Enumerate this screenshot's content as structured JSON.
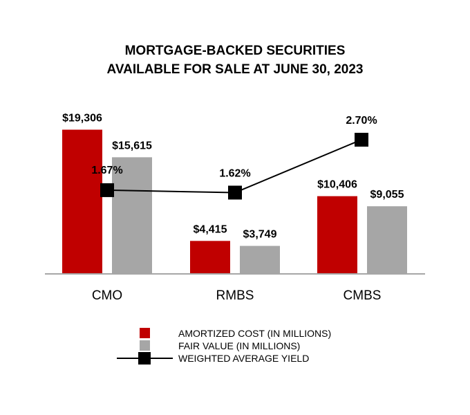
{
  "chart_data": {
    "type": "bar",
    "title": "MORTGAGE-BACKED SECURITIES",
    "subtitle": "AVAILABLE FOR SALE AT JUNE 30, 2023",
    "categories": [
      "CMO",
      "RMBS",
      "CMBS"
    ],
    "series": [
      {
        "name": "AMORTIZED COST (IN MILLIONS)",
        "type": "bar",
        "color": "#c00000",
        "values": [
          19306,
          4415,
          10406
        ],
        "labels": [
          "$19,306",
          "$4,415",
          "$10,406"
        ]
      },
      {
        "name": "FAIR VALUE (IN MILLIONS)",
        "type": "bar",
        "color": "#a6a6a6",
        "values": [
          15615,
          3749,
          9055
        ],
        "labels": [
          "$15,615",
          "$3,749",
          "$9,055"
        ]
      },
      {
        "name": "WEIGHTED AVERAGE YIELD",
        "type": "line",
        "color": "#000000",
        "values": [
          1.67,
          1.62,
          2.7
        ],
        "labels": [
          "1.67%",
          "1.62%",
          "2.70%"
        ]
      }
    ],
    "ylim": [
      0,
      20000
    ],
    "yield_ylim": [
      0,
      3.5
    ],
    "grid": false,
    "legend_position": "bottom"
  }
}
